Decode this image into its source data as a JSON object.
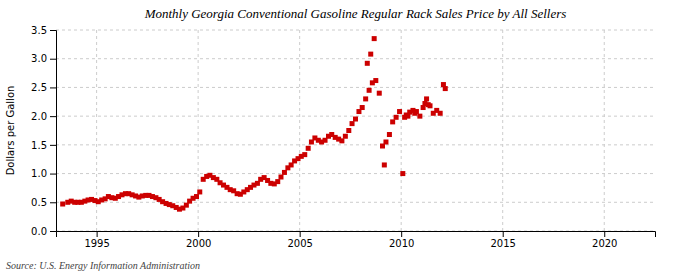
{
  "chart_data": {
    "type": "scatter",
    "title": "Monthly Georgia Conventional Gasoline Regular Rack Sales Price by All Sellers",
    "ylabel": "Dollars per Gallon",
    "annotations": [
      "Source: U.S. Energy Information Administration"
    ],
    "color": "#cc0000",
    "marker": "square",
    "grid": true,
    "xlim": [
      1993.0,
      2022.5
    ],
    "ylim": [
      0.0,
      3.5
    ],
    "xticks": [
      1995,
      2000,
      2005,
      2010,
      2015,
      2020
    ],
    "yticks": [
      {
        "value": 0.0,
        "label": "0.0"
      },
      0.5,
      {
        "value": 1.0,
        "label": "1.0"
      },
      1.5,
      {
        "value": 2.0,
        "label": "2.0"
      },
      2.5,
      {
        "value": 3.0,
        "label": "3.0"
      },
      3.5
    ],
    "x": [
      1993.33,
      1993.58,
      1993.75,
      1993.92,
      1994.08,
      1994.25,
      1994.42,
      1994.58,
      1994.75,
      1994.92,
      1995.08,
      1995.25,
      1995.42,
      1995.58,
      1995.75,
      1995.92,
      1996.08,
      1996.25,
      1996.42,
      1996.58,
      1996.75,
      1996.92,
      1997.08,
      1997.25,
      1997.42,
      1997.58,
      1997.75,
      1997.92,
      1998.08,
      1998.25,
      1998.42,
      1998.58,
      1998.75,
      1998.92,
      1999.08,
      1999.25,
      1999.42,
      1999.58,
      1999.75,
      1999.92,
      2000.08,
      2000.25,
      2000.42,
      2000.58,
      2000.75,
      2000.92,
      2001.08,
      2001.25,
      2001.42,
      2001.58,
      2001.75,
      2001.92,
      2002.08,
      2002.25,
      2002.42,
      2002.58,
      2002.75,
      2002.92,
      2003.08,
      2003.25,
      2003.42,
      2003.58,
      2003.75,
      2003.92,
      2004.08,
      2004.25,
      2004.42,
      2004.58,
      2004.75,
      2004.92,
      2005.08,
      2005.25,
      2005.42,
      2005.58,
      2005.75,
      2005.92,
      2006.08,
      2006.25,
      2006.42,
      2006.58,
      2006.75,
      2006.92,
      2007.08,
      2007.25,
      2007.42,
      2007.58,
      2007.75,
      2007.92,
      2008.08,
      2008.25,
      2008.33,
      2008.42,
      2008.5,
      2008.58,
      2008.67,
      2008.75,
      2008.92,
      2009.08,
      2009.17,
      2009.25,
      2009.42,
      2009.58,
      2009.75,
      2009.92,
      2010.08,
      2010.17,
      2010.25,
      2010.33,
      2010.42,
      2010.58,
      2010.67,
      2010.75,
      2010.92,
      2011.08,
      2011.17,
      2011.25,
      2011.33,
      2011.42,
      2011.58,
      2011.75,
      2011.92,
      2012.08,
      2012.17
    ],
    "values": [
      0.47,
      0.5,
      0.52,
      0.5,
      0.5,
      0.5,
      0.52,
      0.54,
      0.55,
      0.53,
      0.51,
      0.54,
      0.56,
      0.6,
      0.58,
      0.57,
      0.6,
      0.63,
      0.65,
      0.65,
      0.63,
      0.61,
      0.59,
      0.61,
      0.62,
      0.62,
      0.6,
      0.58,
      0.55,
      0.51,
      0.48,
      0.46,
      0.44,
      0.41,
      0.38,
      0.4,
      0.45,
      0.52,
      0.57,
      0.6,
      0.68,
      0.9,
      0.95,
      0.97,
      0.93,
      0.9,
      0.84,
      0.8,
      0.76,
      0.72,
      0.7,
      0.65,
      0.64,
      0.68,
      0.72,
      0.76,
      0.8,
      0.83,
      0.9,
      0.93,
      0.88,
      0.83,
      0.82,
      0.86,
      0.94,
      1.02,
      1.1,
      1.15,
      1.22,
      1.26,
      1.3,
      1.33,
      1.44,
      1.55,
      1.62,
      1.58,
      1.55,
      1.58,
      1.65,
      1.68,
      1.63,
      1.6,
      1.57,
      1.65,
      1.75,
      1.87,
      1.95,
      2.08,
      2.15,
      2.3,
      2.92,
      2.45,
      3.08,
      2.58,
      3.35,
      2.62,
      2.4,
      1.48,
      1.15,
      1.55,
      1.68,
      1.9,
      1.98,
      2.08,
      1.0,
      1.98,
      2.02,
      2.0,
      2.07,
      2.1,
      2.05,
      2.08,
      2.0,
      2.15,
      2.22,
      2.3,
      2.2,
      2.18,
      2.05,
      2.1,
      2.05,
      2.55,
      2.48
    ]
  }
}
